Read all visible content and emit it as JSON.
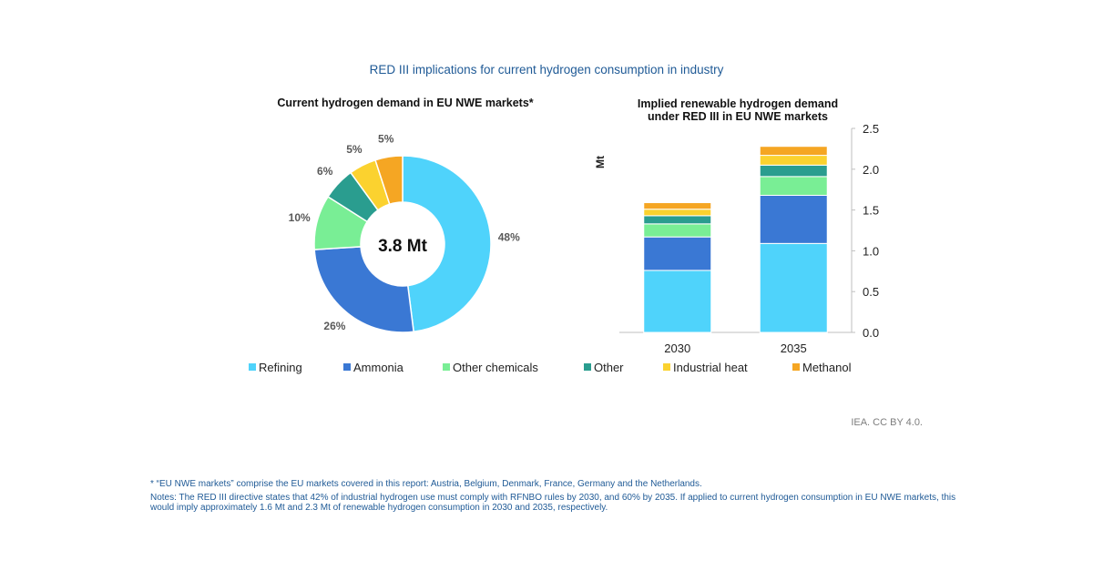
{
  "header": {
    "title": "RED III implications for current hydrogen consumption in industry"
  },
  "chart_data": [
    {
      "type": "pie",
      "variant": "donut",
      "title": "Current hydrogen demand in EU NWE markets*",
      "center_label": "3.8 Mt",
      "categories": [
        "Refining",
        "Ammonia",
        "Other chemicals",
        "Other",
        "Industrial heat",
        "Methanol"
      ],
      "values": [
        48,
        26,
        10,
        6,
        5,
        5
      ],
      "value_labels": [
        "48%",
        "26%",
        "10%",
        "6%",
        "5%",
        "5%"
      ],
      "colors": [
        "#4fd3fb",
        "#3a78d4",
        "#79ee95",
        "#2a9d8f",
        "#fbd22f",
        "#f5a623"
      ]
    },
    {
      "type": "bar",
      "stacked": true,
      "title_lines": [
        "Implied renewable hydrogen demand",
        "under RED III in EU NWE markets"
      ],
      "ylabel": "Mt",
      "ylim": [
        0,
        2.5
      ],
      "yticks": [
        0,
        0.5,
        1,
        1.5,
        2,
        2.5
      ],
      "ytick_labels": [
        "0.0",
        "0.5",
        "1.0",
        "1.5",
        "2.0",
        "2.5"
      ],
      "y_axis_position": "right",
      "categories": [
        "2030",
        "2035"
      ],
      "series": [
        {
          "name": "Refining",
          "values": [
            0.76,
            1.09
          ],
          "color": "#4fd3fb"
        },
        {
          "name": "Ammonia",
          "values": [
            0.41,
            0.59
          ],
          "color": "#3a78d4"
        },
        {
          "name": "Other chemicals",
          "values": [
            0.16,
            0.23
          ],
          "color": "#79ee95"
        },
        {
          "name": "Other",
          "values": [
            0.1,
            0.14
          ],
          "color": "#2a9d8f"
        },
        {
          "name": "Industrial heat",
          "values": [
            0.08,
            0.12
          ],
          "color": "#fbd22f"
        },
        {
          "name": "Methanol",
          "values": [
            0.08,
            0.11
          ],
          "color": "#f5a623"
        }
      ]
    }
  ],
  "legend": [
    {
      "label": "Refining",
      "color": "#4fd3fb"
    },
    {
      "label": "Ammonia",
      "color": "#3a78d4"
    },
    {
      "label": "Other chemicals",
      "color": "#79ee95"
    },
    {
      "label": "Other",
      "color": "#2a9d8f"
    },
    {
      "label": "Industrial heat",
      "color": "#fbd22f"
    },
    {
      "label": "Methanol",
      "color": "#f5a623"
    }
  ],
  "credit": "IEA. CC BY 4.0.",
  "footnotes": {
    "definition": "* “EU NWE markets” comprise the EU markets covered in this report: Austria, Belgium, Denmark, France, Germany and the Netherlands.",
    "notes": "Notes: The RED III directive states that 42% of industrial hydrogen use must comply with RFNBO rules by 2030, and 60% by 2035. If applied to current hydrogen consumption in EU NWE markets, this would imply approximately 1.6 Mt and 2.3 Mt of renewable hydrogen consumption in 2030 and 2035, respectively."
  }
}
